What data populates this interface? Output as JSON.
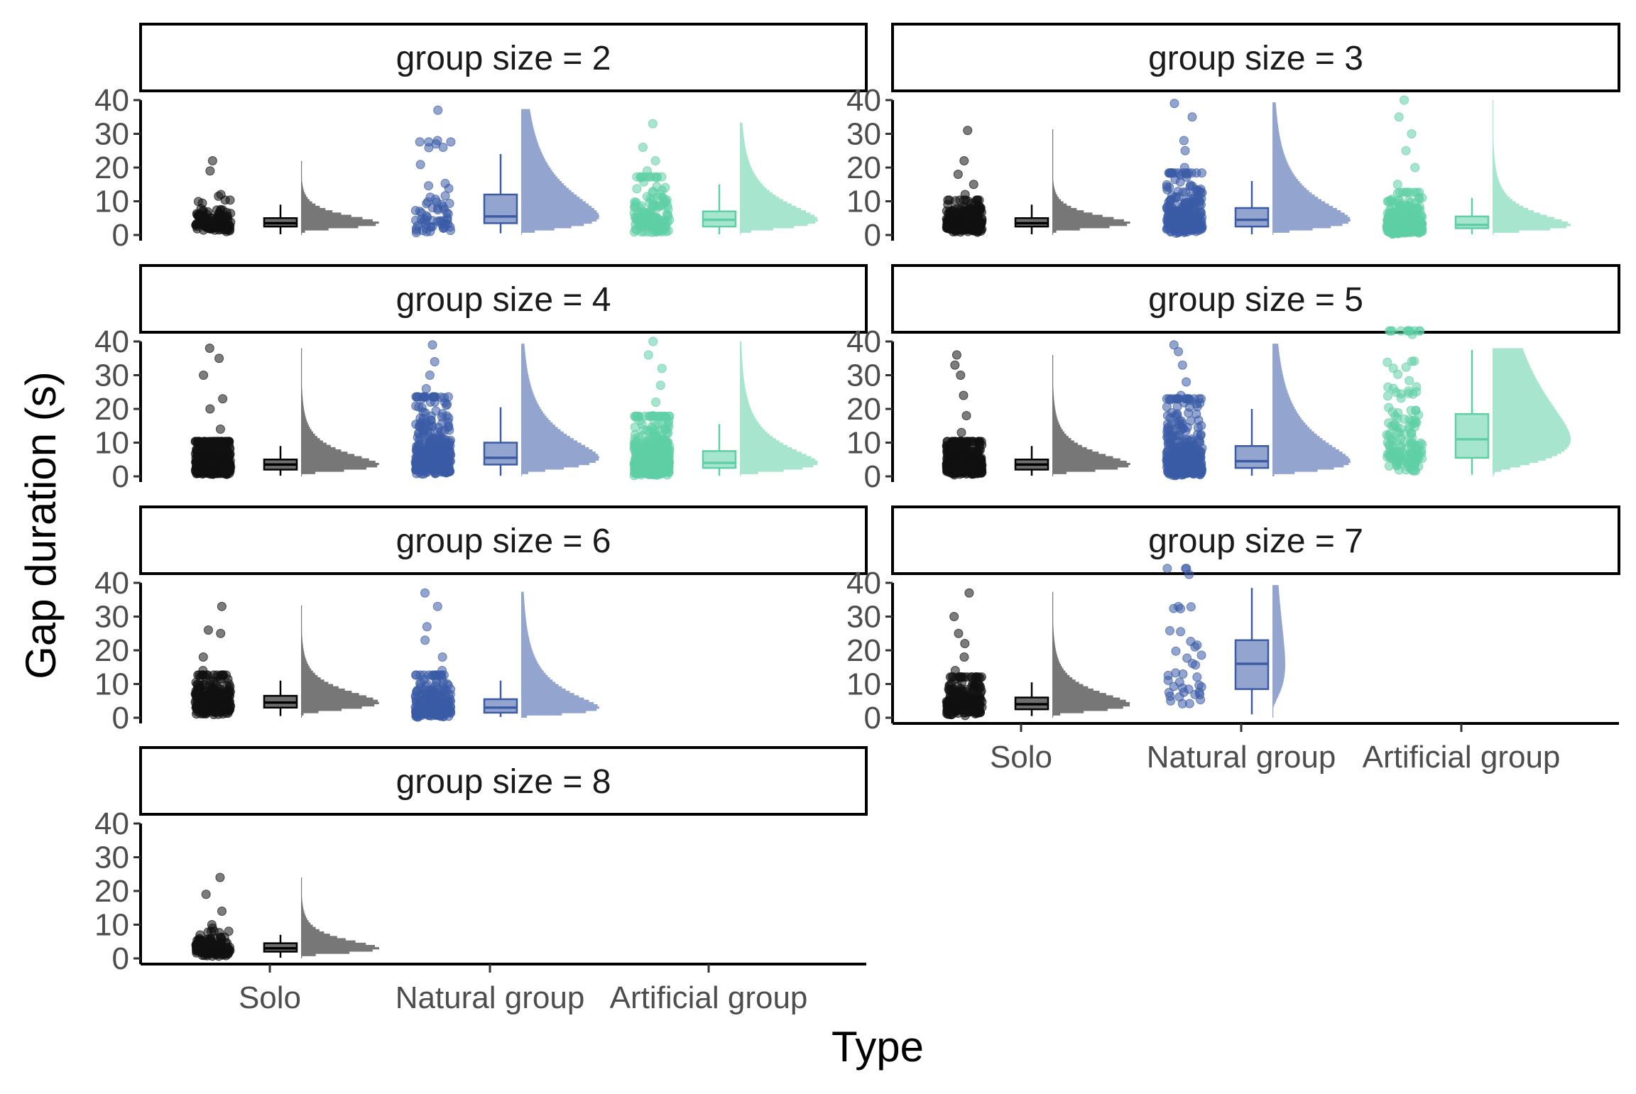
{
  "chart_data": {
    "type": "raincloud",
    "title": "",
    "xlabel": "Type",
    "ylabel": "Gap duration (s)",
    "facet_label_prefix": "group size = ",
    "categories": [
      "Solo",
      "Natural group",
      "Artificial group"
    ],
    "series_colors": {
      "Solo": "#111111",
      "Natural group": "#3b5ba5",
      "Artificial group": "#5fcfa5"
    },
    "ylim": [
      0,
      40
    ],
    "y_ticks": [
      0,
      10,
      20,
      30,
      40
    ],
    "grid": false,
    "legend": "none",
    "panels": [
      {
        "group_size": "2",
        "groups": [
          {
            "type": "Solo",
            "n": 140,
            "q1": 2.5,
            "median": 3.5,
            "q3": 5,
            "whisker_low": 0.2,
            "whisker_high": 9,
            "max": 22,
            "outliers": [
              11.5,
              12,
              19,
              22
            ]
          },
          {
            "type": "Natural group",
            "n": 60,
            "q1": 3.5,
            "median": 5.5,
            "q3": 12,
            "whisker_low": 0.5,
            "whisker_high": 24,
            "max": 37,
            "outliers": [
              26,
              27,
              28,
              37
            ]
          },
          {
            "type": "Artificial group",
            "n": 150,
            "q1": 2.5,
            "median": 4.5,
            "q3": 7,
            "whisker_low": 0.2,
            "whisker_high": 15,
            "max": 33,
            "outliers": [
              17,
              19,
              22,
              26,
              33
            ]
          }
        ]
      },
      {
        "group_size": "3",
        "groups": [
          {
            "type": "Solo",
            "n": 350,
            "q1": 2.5,
            "median": 3.5,
            "q3": 5,
            "whisker_low": 0.2,
            "whisker_high": 9,
            "max": 31,
            "outliers": [
              12,
              15,
              18,
              22,
              31
            ]
          },
          {
            "type": "Natural group",
            "n": 250,
            "q1": 2.5,
            "median": 4.5,
            "q3": 8,
            "whisker_low": 0.2,
            "whisker_high": 16,
            "max": 39,
            "outliers": [
              20,
              25,
              28,
              35,
              39
            ]
          },
          {
            "type": "Artificial group",
            "n": 400,
            "q1": 2,
            "median": 3,
            "q3": 5.5,
            "whisker_low": 0.2,
            "whisker_high": 11,
            "max": 40,
            "outliers": [
              15,
              20,
              25,
              30,
              35,
              40
            ]
          }
        ]
      },
      {
        "group_size": "4",
        "groups": [
          {
            "type": "Solo",
            "n": 500,
            "q1": 2,
            "median": 3.5,
            "q3": 5,
            "whisker_low": 0.2,
            "whisker_high": 9,
            "max": 38,
            "outliers": [
              14,
              20,
              23,
              30,
              35,
              38
            ]
          },
          {
            "type": "Natural group",
            "n": 400,
            "q1": 3.5,
            "median": 5.5,
            "q3": 10,
            "whisker_low": 0.2,
            "whisker_high": 20.5,
            "max": 39,
            "outliers": [
              22,
              26,
              30,
              34,
              39
            ]
          },
          {
            "type": "Artificial group",
            "n": 600,
            "q1": 2.5,
            "median": 4,
            "q3": 7.5,
            "whisker_low": 0.2,
            "whisker_high": 15.5,
            "max": 40,
            "outliers": [
              18,
              22,
              27,
              32,
              36,
              40
            ]
          }
        ]
      },
      {
        "group_size": "5",
        "groups": [
          {
            "type": "Solo",
            "n": 500,
            "q1": 2,
            "median": 3.5,
            "q3": 5,
            "whisker_low": 0.2,
            "whisker_high": 9,
            "max": 36,
            "outliers": [
              13,
              18,
              24,
              30,
              33,
              36
            ]
          },
          {
            "type": "Natural group",
            "n": 400,
            "q1": 2.5,
            "median": 4.5,
            "q3": 9,
            "whisker_low": 0.2,
            "whisker_high": 20,
            "max": 39,
            "outliers": [
              24,
              28,
              33,
              37,
              39
            ]
          },
          {
            "type": "Artificial group",
            "n": 150,
            "q1": 5.5,
            "median": 11,
            "q3": 18.5,
            "whisker_low": 0.5,
            "whisker_high": 37.5,
            "max": 38,
            "outliers": []
          }
        ]
      },
      {
        "group_size": "6",
        "groups": [
          {
            "type": "Solo",
            "n": 300,
            "q1": 3,
            "median": 4.5,
            "q3": 6.5,
            "whisker_low": 0.5,
            "whisker_high": 11,
            "max": 33,
            "outliers": [
              14,
              18,
              25,
              26,
              33
            ]
          },
          {
            "type": "Natural group",
            "n": 250,
            "q1": 1.5,
            "median": 3,
            "q3": 5.5,
            "whisker_low": 0.2,
            "whisker_high": 11,
            "max": 37,
            "outliers": [
              14,
              18,
              23,
              27,
              33,
              37
            ]
          }
        ]
      },
      {
        "group_size": "7",
        "groups": [
          {
            "type": "Solo",
            "n": 250,
            "q1": 2.5,
            "median": 4,
            "q3": 6,
            "whisker_low": 0.5,
            "whisker_high": 10.5,
            "max": 37,
            "outliers": [
              14,
              18,
              22,
              25,
              30,
              37
            ]
          },
          {
            "type": "Natural group",
            "n": 40,
            "q1": 8.5,
            "median": 16,
            "q3": 23,
            "whisker_low": 1,
            "whisker_high": 38.5,
            "max": 39,
            "outliers": []
          }
        ]
      },
      {
        "group_size": "8",
        "groups": [
          {
            "type": "Solo",
            "n": 150,
            "q1": 2,
            "median": 3,
            "q3": 4.5,
            "whisker_low": 0.2,
            "whisker_high": 7,
            "max": 24,
            "outliers": [
              9,
              10,
              14,
              19,
              24
            ]
          }
        ]
      }
    ]
  }
}
